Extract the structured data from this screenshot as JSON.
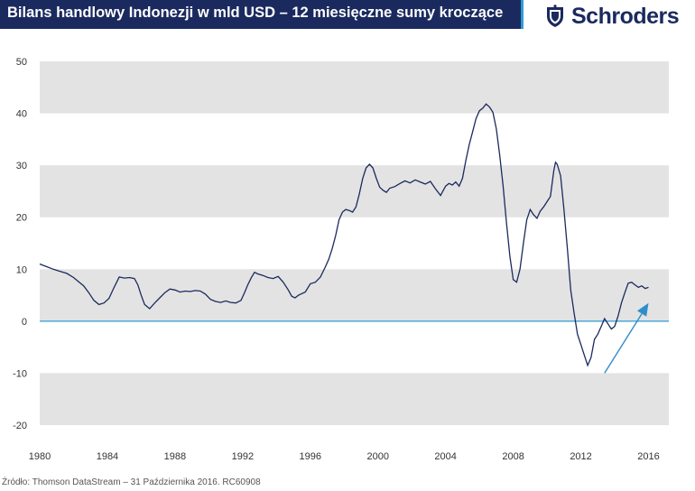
{
  "header": {
    "title": "Bilans handlowy Indonezji w mld USD – 12 miesięczne sumy kroczące",
    "logo_text": "Schroders",
    "logo_icon": "crest-icon"
  },
  "footer": {
    "source": "Źródło: Thomson DataStream – 31 Października 2016. RC60908"
  },
  "colors": {
    "title_bg": "#1b2a5e",
    "title_accent": "#2f9bd6",
    "band": "#e3e3e3",
    "line": "#1b2a5e",
    "zero_line": "#2f9bd6",
    "arrow": "#2f8ec9"
  },
  "chart_data": {
    "type": "line",
    "title": "Bilans handlowy Indonezji w mld USD – 12 miesięczne sumy kroczące",
    "xlabel": "",
    "ylabel": "",
    "xlim": [
      1980,
      2017.2
    ],
    "ylim": [
      -20,
      50
    ],
    "x_ticks": [
      "1980",
      "1984",
      "1988",
      "1992",
      "1996",
      "2000",
      "2004",
      "2008",
      "2012",
      "2016"
    ],
    "y_ticks": [
      "50",
      "40",
      "30",
      "20",
      "10",
      "0",
      "-10",
      "-20"
    ],
    "grid": "alternating horizontal bands",
    "reference_line": 0,
    "annotation": {
      "type": "arrow",
      "from": [
        2013.4,
        -10
      ],
      "to": [
        2016.0,
        3.5
      ]
    },
    "series": [
      {
        "x": [
          1980.0,
          1980.4,
          1980.8,
          1981.2,
          1981.6,
          1982.0,
          1982.3,
          1982.6,
          1982.9,
          1983.2,
          1983.5,
          1983.8,
          1984.1,
          1984.4,
          1984.7,
          1985.0,
          1985.3,
          1985.6,
          1985.8,
          1986.0,
          1986.2,
          1986.5,
          1986.8,
          1987.1,
          1987.4,
          1987.7,
          1988.0,
          1988.3,
          1988.6,
          1988.9,
          1989.2,
          1989.5,
          1989.8,
          1990.1,
          1990.4,
          1990.7,
          1991.0,
          1991.3,
          1991.6,
          1991.9,
          1992.1,
          1992.3,
          1992.5,
          1992.7,
          1992.9,
          1993.2,
          1993.5,
          1993.8,
          1994.1,
          1994.4,
          1994.7,
          1994.9,
          1995.1,
          1995.3,
          1995.5,
          1995.7,
          1996.0,
          1996.3,
          1996.6,
          1996.9,
          1997.1,
          1997.3,
          1997.5,
          1997.7,
          1997.9,
          1998.1,
          1998.3,
          1998.5,
          1998.7,
          1998.9,
          1999.1,
          1999.3,
          1999.5,
          1999.7,
          1999.9,
          2000.1,
          2000.3,
          2000.5,
          2000.7,
          2001.0,
          2001.3,
          2001.6,
          2001.9,
          2002.2,
          2002.5,
          2002.8,
          2003.1,
          2003.4,
          2003.7,
          2004.0,
          2004.2,
          2004.4,
          2004.6,
          2004.8,
          2005.0,
          2005.2,
          2005.4,
          2005.6,
          2005.8,
          2006.0,
          2006.2,
          2006.4,
          2006.6,
          2006.8,
          2007.0,
          2007.2,
          2007.4,
          2007.6,
          2007.8,
          2008.0,
          2008.2,
          2008.4,
          2008.6,
          2008.8,
          2009.0,
          2009.2,
          2009.4,
          2009.6,
          2009.8,
          2010.0,
          2010.2,
          2010.4,
          2010.5,
          2010.6,
          2010.8,
          2011.0,
          2011.2,
          2011.4,
          2011.6,
          2011.8,
          2012.0,
          2012.2,
          2012.4,
          2012.6,
          2012.8,
          2013.0,
          2013.2,
          2013.4,
          2013.6,
          2013.8,
          2014.0,
          2014.2,
          2014.4,
          2014.6,
          2014.8,
          2015.0,
          2015.2,
          2015.4,
          2015.6,
          2015.8,
          2016.0
        ],
        "values": [
          11.0,
          10.5,
          10.0,
          9.6,
          9.2,
          8.4,
          7.6,
          6.8,
          5.5,
          4.0,
          3.2,
          3.5,
          4.4,
          6.5,
          8.5,
          8.3,
          8.4,
          8.2,
          7.0,
          5.0,
          3.2,
          2.4,
          3.5,
          4.5,
          5.5,
          6.2,
          6.0,
          5.6,
          5.8,
          5.7,
          5.9,
          5.8,
          5.2,
          4.2,
          3.8,
          3.6,
          3.9,
          3.6,
          3.5,
          4.0,
          5.4,
          7.0,
          8.3,
          9.4,
          9.1,
          8.8,
          8.4,
          8.2,
          8.6,
          7.5,
          6.0,
          4.8,
          4.5,
          5.0,
          5.3,
          5.6,
          7.2,
          7.5,
          8.5,
          10.5,
          12.0,
          14.0,
          16.5,
          19.5,
          21.0,
          21.5,
          21.3,
          21.0,
          22.0,
          24.5,
          27.5,
          29.5,
          30.2,
          29.5,
          27.5,
          25.8,
          25.2,
          24.8,
          25.6,
          25.9,
          26.5,
          27.0,
          26.6,
          27.2,
          26.8,
          26.4,
          26.9,
          25.5,
          24.2,
          26.0,
          26.5,
          26.2,
          26.8,
          26.0,
          27.5,
          31.0,
          34.0,
          36.5,
          39.0,
          40.5,
          41.0,
          41.8,
          41.2,
          40.2,
          37.0,
          32.0,
          26.0,
          19.0,
          12.5,
          8.0,
          7.5,
          10.0,
          15.0,
          19.5,
          21.5,
          20.5,
          19.8,
          21.2,
          22.0,
          23.0,
          24.0,
          29.0,
          30.6,
          30.2,
          28.0,
          21.5,
          14.0,
          6.0,
          1.5,
          -2.5,
          -4.5,
          -6.5,
          -8.5,
          -7.0,
          -3.5,
          -2.5,
          -1.0,
          0.5,
          -0.5,
          -1.5,
          -1.0,
          1.0,
          3.5,
          5.5,
          7.3,
          7.5,
          7.0,
          6.5,
          6.8,
          6.3,
          6.5
        ]
      }
    ]
  }
}
